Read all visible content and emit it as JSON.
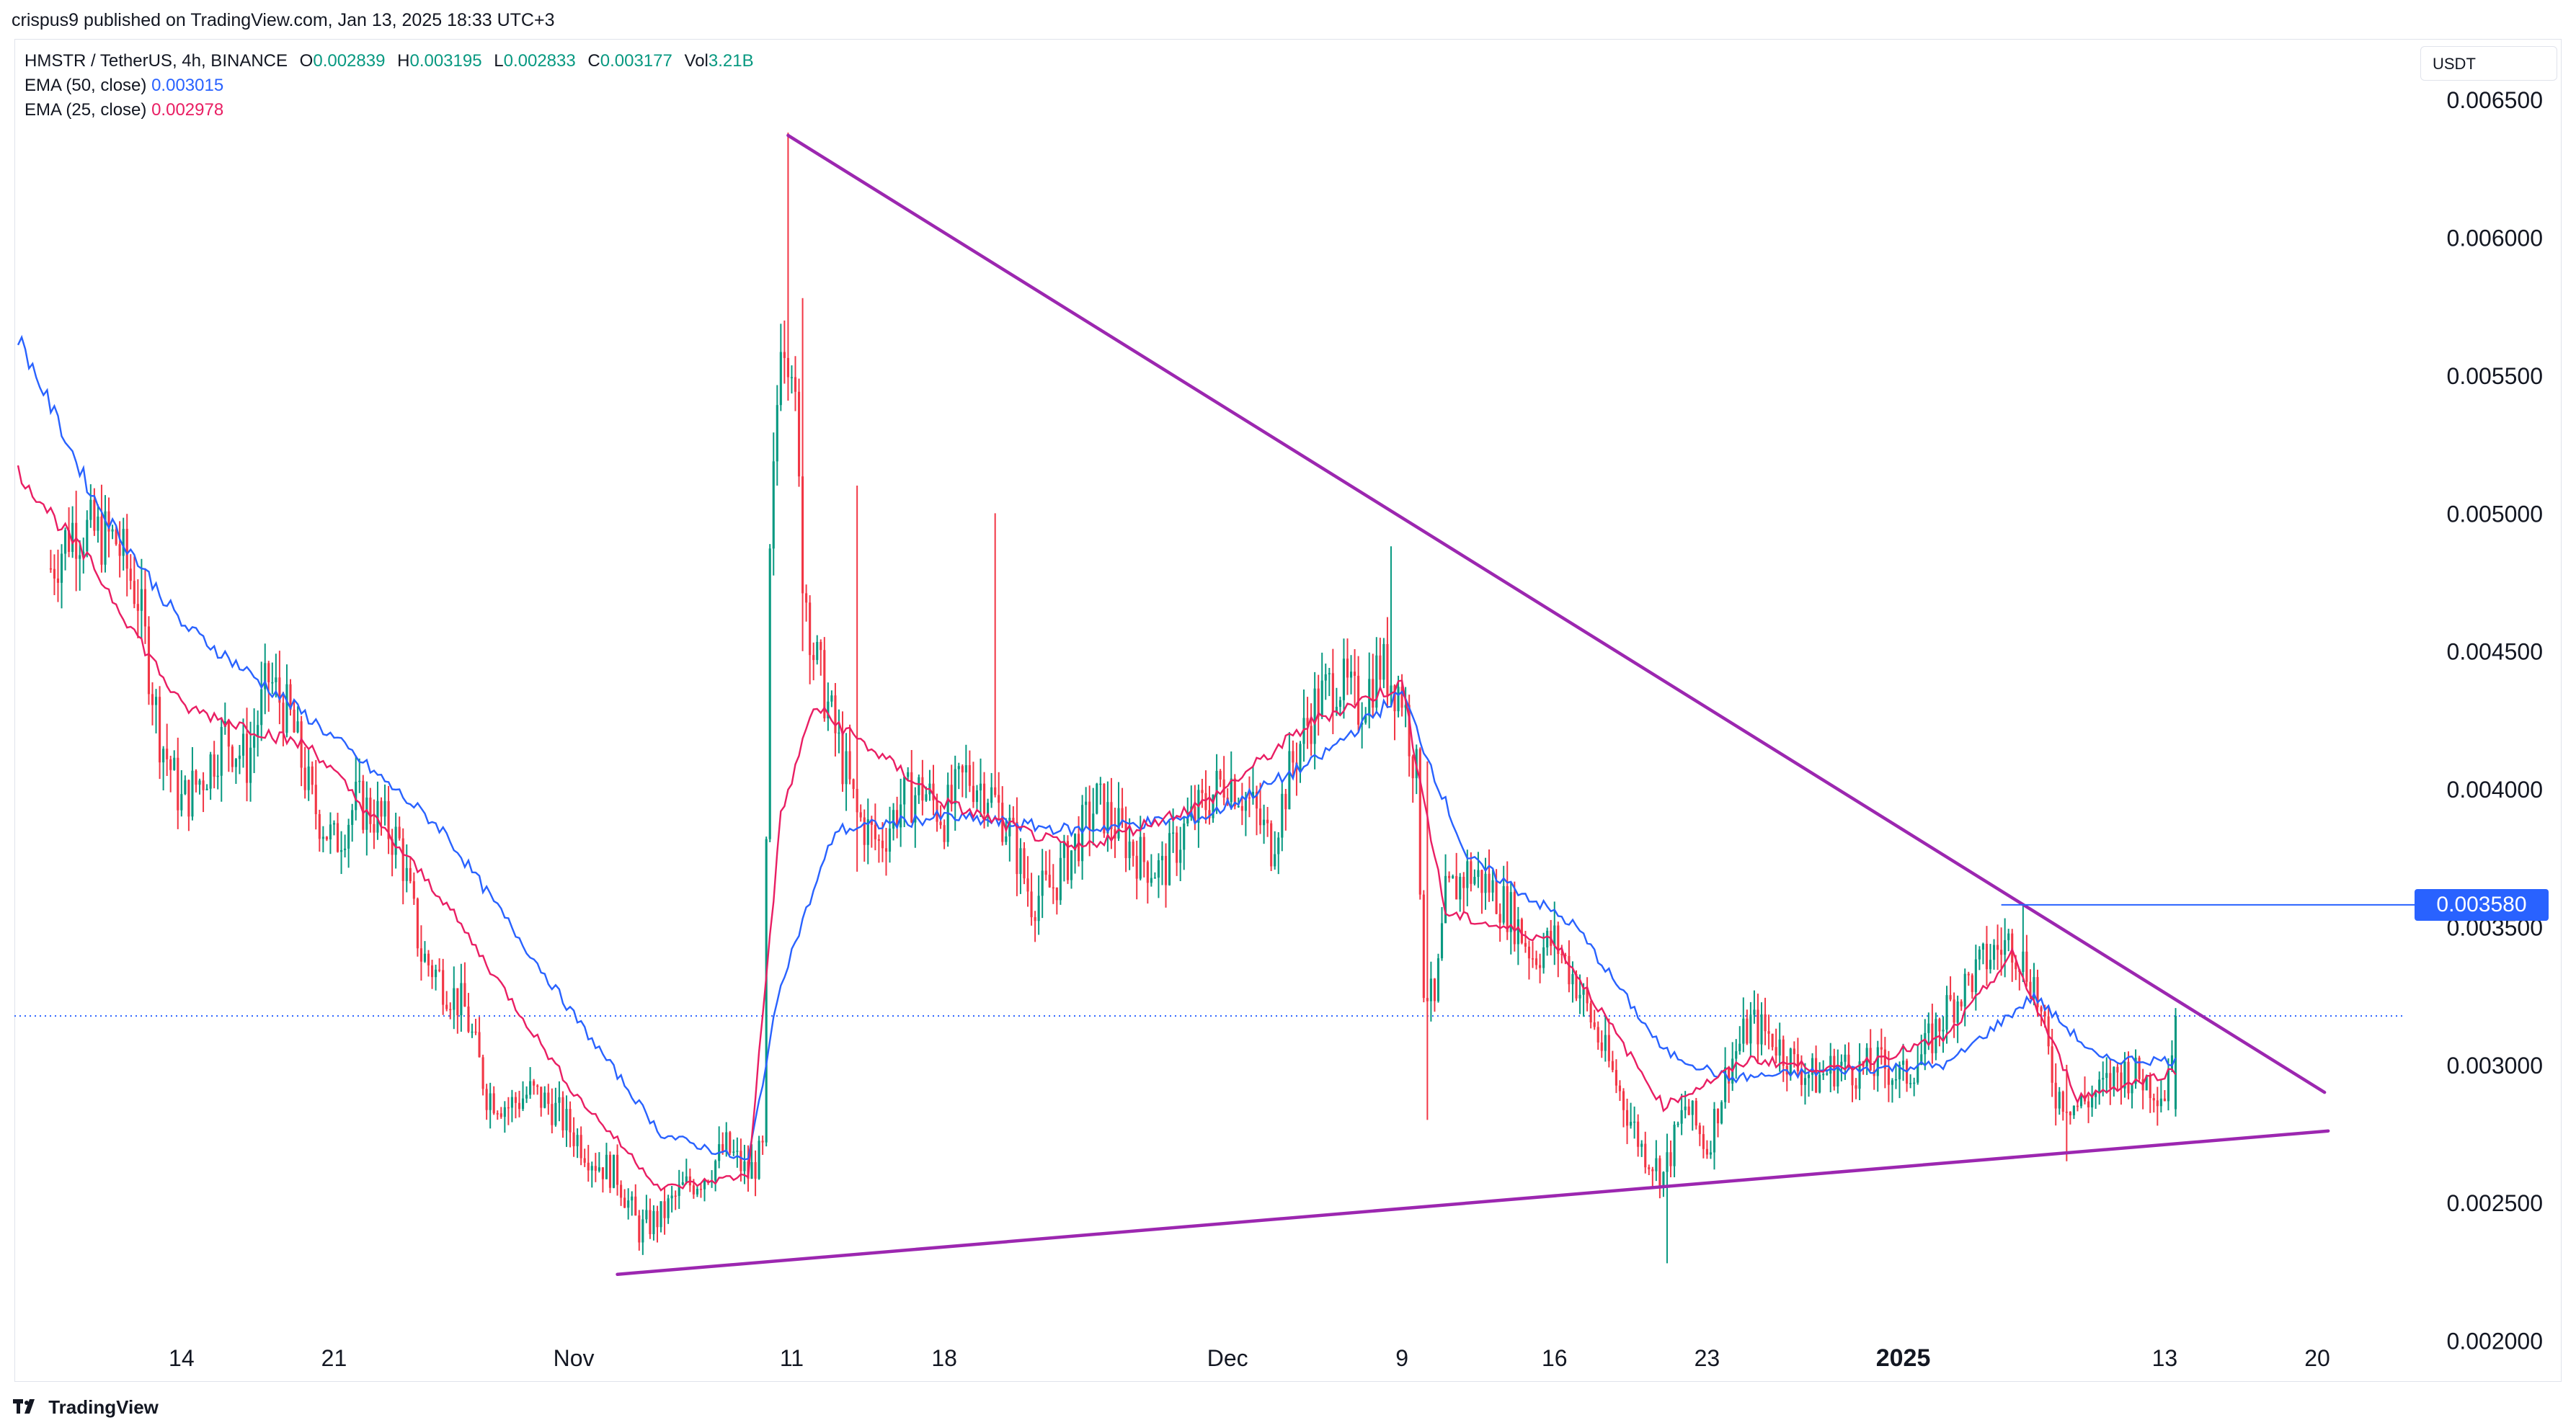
{
  "header": {
    "published": "crispus9 published on TradingView.com, Jan 13, 2025 18:33 UTC+3"
  },
  "legend": {
    "symbol": "HMSTR / TetherUS, 4h, BINANCE",
    "open_label": "O",
    "open": "0.002839",
    "high_label": "H",
    "high": "0.003195",
    "low_label": "L",
    "low": "0.002833",
    "close_label": "C",
    "close": "0.003177",
    "vol_label": "Vol",
    "vol": "3.21B",
    "ema50_label": "EMA (50, close)",
    "ema50_value": "0.003015",
    "ema25_label": "EMA (25, close)",
    "ema25_value": "0.002978"
  },
  "toolbar": {
    "currency": "USDT"
  },
  "price_marker": {
    "value": "0.003580"
  },
  "footer": {
    "brand": "TradingView"
  },
  "colors": {
    "up": "#089981",
    "down": "#f23645",
    "ema50": "#2962ff",
    "ema25": "#e91e63",
    "trendline": "#9c27b0",
    "marker": "#2962ff"
  },
  "chart_data": {
    "type": "candlestick",
    "interval": "4h",
    "y_axis": {
      "min": 0.00185,
      "max": 0.00672,
      "ticks": [
        "0.002000",
        "0.002500",
        "0.003000",
        "0.003500",
        "0.004000",
        "0.004500",
        "0.005000",
        "0.005500",
        "0.006000",
        "0.006500"
      ]
    },
    "x_axis": {
      "ticks": [
        "14",
        "21",
        "Nov",
        "11",
        "18",
        "Dec",
        "9",
        "16",
        "23",
        "2025",
        "13",
        "20"
      ]
    },
    "price_anchors": [
      [
        "2024-10-08",
        0.0048
      ],
      [
        "2024-10-09",
        0.00495
      ],
      [
        "2024-10-11",
        0.0049
      ],
      [
        "2024-10-12",
        0.0047
      ],
      [
        "2024-10-13",
        0.0042
      ],
      [
        "2024-10-14",
        0.00395
      ],
      [
        "2024-10-15",
        0.00405
      ],
      [
        "2024-10-16",
        0.0042
      ],
      [
        "2024-10-17",
        0.0041
      ],
      [
        "2024-10-18",
        0.0044
      ],
      [
        "2024-10-19",
        0.00425
      ],
      [
        "2024-10-20",
        0.00395
      ],
      [
        "2024-10-21",
        0.0038
      ],
      [
        "2024-10-22",
        0.00395
      ],
      [
        "2024-10-23",
        0.0039
      ],
      [
        "2024-10-24",
        0.0038
      ],
      [
        "2024-10-25",
        0.0034
      ],
      [
        "2024-10-26",
        0.0033
      ],
      [
        "2024-10-27",
        0.0032
      ],
      [
        "2024-10-28",
        0.0029
      ],
      [
        "2024-10-29",
        0.00285
      ],
      [
        "2024-10-30",
        0.0029
      ],
      [
        "2024-10-31",
        0.00285
      ],
      [
        "2024-11-01",
        0.00275
      ],
      [
        "2024-11-02",
        0.00265
      ],
      [
        "2024-11-03",
        0.0026
      ],
      [
        "2024-11-04",
        0.0024
      ],
      [
        "2024-11-05",
        0.00245
      ],
      [
        "2024-11-06",
        0.00255
      ],
      [
        "2024-11-07",
        0.0026
      ],
      [
        "2024-11-08",
        0.0027
      ],
      [
        "2024-11-09",
        0.0026
      ],
      [
        "2024-11-09T16:00",
        0.00268
      ],
      [
        "2024-11-10",
        0.0048
      ],
      [
        "2024-11-10T12:00",
        0.0057
      ],
      [
        "2024-11-11",
        0.0056
      ],
      [
        "2024-11-11T12:00",
        0.0048
      ],
      [
        "2024-11-12",
        0.0045
      ],
      [
        "2024-11-13",
        0.0042
      ],
      [
        "2024-11-14",
        0.0039
      ],
      [
        "2024-11-15",
        0.0038
      ],
      [
        "2024-11-16",
        0.00395
      ],
      [
        "2024-11-17",
        0.004
      ],
      [
        "2024-11-18",
        0.0039
      ],
      [
        "2024-11-19",
        0.00405
      ],
      [
        "2024-11-20",
        0.004
      ],
      [
        "2024-11-21",
        0.00385
      ],
      [
        "2024-11-22",
        0.0036
      ],
      [
        "2024-11-23",
        0.00365
      ],
      [
        "2024-11-24",
        0.0038
      ],
      [
        "2024-11-25",
        0.00395
      ],
      [
        "2024-11-26",
        0.00385
      ],
      [
        "2024-11-27",
        0.00375
      ],
      [
        "2024-11-28",
        0.0037
      ],
      [
        "2024-11-29",
        0.00385
      ],
      [
        "2024-11-30",
        0.00395
      ],
      [
        "2024-12-01",
        0.00405
      ],
      [
        "2024-12-02",
        0.00395
      ],
      [
        "2024-12-03",
        0.0038
      ],
      [
        "2024-12-04",
        0.0041
      ],
      [
        "2024-12-05",
        0.0043
      ],
      [
        "2024-12-06",
        0.0044
      ],
      [
        "2024-12-07",
        0.0043
      ],
      [
        "2024-12-08",
        0.00445
      ],
      [
        "2024-12-09",
        0.00435
      ],
      [
        "2024-12-09T16:00",
        0.00405
      ],
      [
        "2024-12-10",
        0.0033
      ],
      [
        "2024-12-10T12:00",
        0.0032
      ],
      [
        "2024-12-11",
        0.0036
      ],
      [
        "2024-12-12",
        0.0037
      ],
      [
        "2024-12-13",
        0.00365
      ],
      [
        "2024-12-14",
        0.00355
      ],
      [
        "2024-12-15",
        0.0034
      ],
      [
        "2024-12-16",
        0.00345
      ],
      [
        "2024-12-17",
        0.0033
      ],
      [
        "2024-12-18",
        0.0031
      ],
      [
        "2024-12-19",
        0.0029
      ],
      [
        "2024-12-20",
        0.0027
      ],
      [
        "2024-12-21",
        0.0026
      ],
      [
        "2024-12-22",
        0.00285
      ],
      [
        "2024-12-23",
        0.0027
      ],
      [
        "2024-12-24",
        0.003
      ],
      [
        "2024-12-25",
        0.00315
      ],
      [
        "2024-12-26",
        0.0031
      ],
      [
        "2024-12-27",
        0.003
      ],
      [
        "2024-12-28",
        0.00295
      ],
      [
        "2024-12-29",
        0.003
      ],
      [
        "2024-12-30",
        0.00298
      ],
      [
        "2024-12-31",
        0.003
      ],
      [
        "2025-01-01",
        0.00295
      ],
      [
        "2025-01-02",
        0.00305
      ],
      [
        "2025-01-03",
        0.0032
      ],
      [
        "2025-01-04",
        0.0033
      ],
      [
        "2025-01-05",
        0.0034
      ],
      [
        "2025-01-06",
        0.00345
      ],
      [
        "2025-01-07",
        0.0033
      ],
      [
        "2025-01-08",
        0.0029
      ],
      [
        "2025-01-09",
        0.00285
      ],
      [
        "2025-01-10",
        0.0029
      ],
      [
        "2025-01-11",
        0.00298
      ],
      [
        "2025-01-12",
        0.00295
      ],
      [
        "2025-01-13",
        0.0029
      ],
      [
        "2025-01-13T12:00",
        0.003177
      ]
    ],
    "spikes": [
      [
        "2024-11-10T20:00",
        0.00638,
        0.0056
      ],
      [
        "2024-11-11T12:00",
        0.00578,
        0.0045
      ],
      [
        "2024-11-14T00:00",
        0.0051,
        0.0037
      ],
      [
        "2024-11-20T08:00",
        0.005,
        0.004
      ],
      [
        "2024-12-08T12:00",
        0.00488,
        0.0043
      ],
      [
        "2024-12-10T04:00",
        0.0041,
        0.0028
      ],
      [
        "2024-12-21T04:00",
        0.00275,
        0.00228
      ],
      [
        "2025-01-06T12:00",
        0.00358,
        0.0033
      ],
      [
        "2025-01-08T12:00",
        0.003,
        0.00265
      ],
      [
        "2025-01-13T12:00",
        0.003195,
        0.002833
      ]
    ],
    "ema50_anchors": [
      [
        "2024-10-06T12:00",
        0.00564
      ],
      [
        "2024-10-10",
        0.00505
      ],
      [
        "2024-10-14",
        0.0046
      ],
      [
        "2024-10-20",
        0.00425
      ],
      [
        "2024-10-26",
        0.00385
      ],
      [
        "2024-11-01",
        0.00318
      ],
      [
        "2024-11-05",
        0.00275
      ],
      [
        "2024-11-09",
        0.00265
      ],
      [
        "2024-11-10T12:00",
        0.0033
      ],
      [
        "2024-11-13",
        0.00385
      ],
      [
        "2024-11-18",
        0.0039
      ],
      [
        "2024-11-24",
        0.00385
      ],
      [
        "2024-11-30",
        0.0039
      ],
      [
        "2024-12-05",
        0.0041
      ],
      [
        "2024-12-09",
        0.00435
      ],
      [
        "2024-12-12",
        0.00375
      ],
      [
        "2024-12-17",
        0.0035
      ],
      [
        "2024-12-21",
        0.00305
      ],
      [
        "2024-12-24",
        0.00295
      ],
      [
        "2024-12-29",
        0.00298
      ],
      [
        "2025-01-03",
        0.003
      ],
      [
        "2025-01-07",
        0.00325
      ],
      [
        "2025-01-10",
        0.00302
      ],
      [
        "2025-01-13T12:00",
        0.003015
      ]
    ],
    "ema25_anchors": [
      [
        "2024-10-06T12:00",
        0.00515
      ],
      [
        "2024-10-10",
        0.0048
      ],
      [
        "2024-10-14",
        0.0043
      ],
      [
        "2024-10-20",
        0.00415
      ],
      [
        "2024-10-26",
        0.0036
      ],
      [
        "2024-11-01",
        0.0029
      ],
      [
        "2024-11-05",
        0.00255
      ],
      [
        "2024-11-09",
        0.0026
      ],
      [
        "2024-11-10T12:00",
        0.0039
      ],
      [
        "2024-11-12",
        0.0043
      ],
      [
        "2024-11-18",
        0.00395
      ],
      [
        "2024-11-24",
        0.00378
      ],
      [
        "2024-11-30",
        0.00395
      ],
      [
        "2024-12-05",
        0.00425
      ],
      [
        "2024-12-09",
        0.00438
      ],
      [
        "2024-12-11",
        0.00355
      ],
      [
        "2024-12-16",
        0.00345
      ],
      [
        "2024-12-21",
        0.00285
      ],
      [
        "2024-12-25",
        0.00302
      ],
      [
        "2024-12-29",
        0.00298
      ],
      [
        "2025-01-03",
        0.0031
      ],
      [
        "2025-01-06",
        0.0034
      ],
      [
        "2025-01-09",
        0.00288
      ],
      [
        "2025-01-13T12:00",
        0.002978
      ]
    ],
    "trendlines": [
      {
        "name": "descending resistance",
        "from": [
          "2024-11-10T20:00",
          0.00637
        ],
        "to": [
          "2025-01-20T08:00",
          0.0029
        ]
      },
      {
        "name": "ascending support",
        "from": [
          "2024-11-03T00:00",
          0.00224
        ],
        "to": [
          "2025-01-20T12:00",
          0.00276
        ]
      }
    ],
    "horizontal_marker": {
      "from": "2025-01-05T12:00",
      "value": 0.00358
    },
    "last_price_line": 0.003177
  }
}
